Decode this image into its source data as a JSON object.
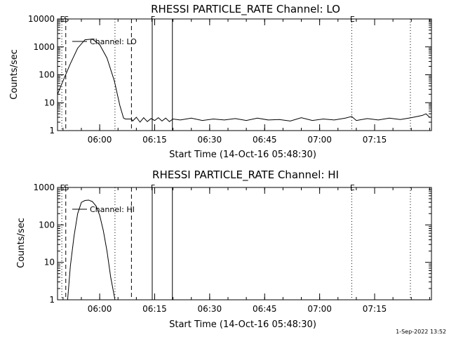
{
  "chart_data": [
    {
      "type": "line",
      "title": "RHESSI PARTICLE_RATE Channel: LO",
      "xlabel": "Start Time (14-Oct-16 05:48:30)",
      "ylabel": "Counts/sec",
      "y_scale": "log",
      "ylim": [
        1,
        10000
      ],
      "y_ticks": [
        {
          "v": 1,
          "label": "1"
        },
        {
          "v": 10,
          "label": "10"
        },
        {
          "v": 100,
          "label": "100"
        },
        {
          "v": 1000,
          "label": "1000"
        },
        {
          "v": 10000,
          "label": "10000"
        }
      ],
      "xlim": [
        "05:48:30",
        "07:30:30"
      ],
      "x_ticks": [
        "06:00",
        "06:15",
        "06:30",
        "06:45",
        "07:00",
        "07:15"
      ],
      "legend": {
        "entry": "Channel: LO",
        "placement": "top-left"
      },
      "markers": [
        {
          "label": "E",
          "time": "05:49:40",
          "style": "dotted"
        },
        {
          "label": "S",
          "time": "05:50:45",
          "style": "dashed"
        },
        {
          "label": "",
          "time": "06:04:10",
          "style": "dotted"
        },
        {
          "label": "",
          "time": "06:08:40",
          "style": "dashed"
        },
        {
          "label": "F",
          "time": "06:14:20",
          "style": "solid"
        },
        {
          "label": "",
          "time": "06:19:50",
          "style": "solid"
        },
        {
          "label": "E",
          "time": "07:08:45",
          "style": "dotted"
        },
        {
          "label": "",
          "time": "07:24:45",
          "style": "dotted"
        }
      ],
      "series": [
        {
          "times": [
            "05:48:30",
            "05:50:00",
            "05:52:00",
            "05:54:00",
            "05:56:00",
            "05:58:00",
            "06:00:00",
            "06:02:00",
            "06:04:00",
            "06:05:30",
            "06:06:30",
            "06:07:00",
            "06:08:00",
            "06:08:40",
            "06:09:00",
            "06:10:00",
            "06:11:00",
            "06:12:00",
            "06:13:00",
            "06:14:00",
            "06:15:00",
            "06:16:00",
            "06:17:00",
            "06:18:00",
            "06:19:00",
            "06:20:00",
            "06:22:00",
            "06:25:00",
            "06:28:00",
            "06:31:00",
            "06:34:00",
            "06:37:00",
            "06:40:00",
            "06:43:00",
            "06:46:00",
            "06:49:00",
            "06:52:00",
            "06:55:00",
            "06:58:00",
            "07:01:00",
            "07:04:00",
            "07:07:00",
            "07:08:45",
            "07:10:00",
            "07:13:00",
            "07:16:00",
            "07:19:00",
            "07:22:00",
            "07:25:00",
            "07:28:00",
            "07:29:00",
            "07:30:00"
          ],
          "values": [
            20,
            60,
            250,
            900,
            1800,
            1900,
            1200,
            400,
            60,
            8,
            2.8,
            2.6,
            2.6,
            2.6,
            2.2,
            3.0,
            2.0,
            2.9,
            2.1,
            2.7,
            2.3,
            2.9,
            2.2,
            2.8,
            2.1,
            2.6,
            2.4,
            2.8,
            2.3,
            2.6,
            2.4,
            2.7,
            2.3,
            2.8,
            2.4,
            2.5,
            2.2,
            2.9,
            2.3,
            2.6,
            2.4,
            2.8,
            3.2,
            2.3,
            2.7,
            2.4,
            2.8,
            2.5,
            2.9,
            3.5,
            4.0,
            3.0
          ]
        }
      ]
    },
    {
      "type": "line",
      "title": "RHESSI PARTICLE_RATE Channel: HI",
      "xlabel": "Start Time (14-Oct-16 05:48:30)",
      "ylabel": "Counts/sec",
      "y_scale": "log",
      "ylim": [
        1,
        1000
      ],
      "y_ticks": [
        {
          "v": 1,
          "label": "1"
        },
        {
          "v": 10,
          "label": "10"
        },
        {
          "v": 100,
          "label": "100"
        },
        {
          "v": 1000,
          "label": "1000"
        }
      ],
      "xlim": [
        "05:48:30",
        "07:30:30"
      ],
      "x_ticks": [
        "06:00",
        "06:15",
        "06:30",
        "06:45",
        "07:00",
        "07:15"
      ],
      "legend": {
        "entry": "Channel: HI",
        "placement": "top-left"
      },
      "markers": [
        {
          "label": "E",
          "time": "05:49:40",
          "style": "dotted"
        },
        {
          "label": "S",
          "time": "05:50:45",
          "style": "dashed"
        },
        {
          "label": "",
          "time": "06:04:10",
          "style": "dotted"
        },
        {
          "label": "",
          "time": "06:08:40",
          "style": "dashed"
        },
        {
          "label": "F",
          "time": "06:14:20",
          "style": "solid"
        },
        {
          "label": "",
          "time": "06:19:50",
          "style": "solid"
        },
        {
          "label": "E",
          "time": "07:08:45",
          "style": "dotted"
        },
        {
          "label": "",
          "time": "07:24:45",
          "style": "dotted"
        }
      ],
      "series": [
        {
          "times": [
            "05:51:15",
            "05:52:00",
            "05:53:00",
            "05:54:00",
            "05:55:00",
            "05:56:00",
            "05:57:00",
            "05:58:00",
            "05:59:00",
            "06:00:00",
            "06:01:00",
            "06:02:00",
            "06:03:00",
            "06:03:40",
            "06:04:10"
          ],
          "values": [
            1,
            8,
            50,
            200,
            400,
            450,
            460,
            420,
            320,
            180,
            70,
            20,
            4,
            1.8,
            1
          ]
        }
      ]
    }
  ],
  "footer": {
    "timestamp": "1-Sep-2022 13:52"
  }
}
